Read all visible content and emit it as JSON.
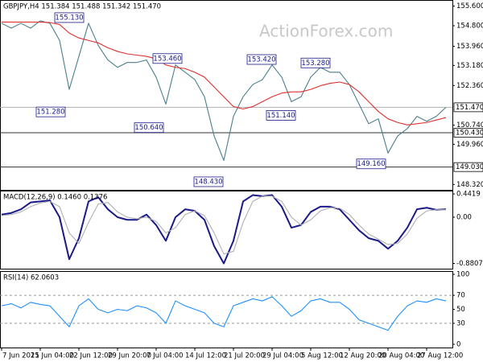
{
  "chart_data": [
    {
      "type": "line",
      "title": "GBPJPY,H4 151.384 151.488 151.342 151.470",
      "watermark": "ActionForex.com",
      "categories": [
        "7 Jun 2021",
        null,
        null,
        null,
        "15 Jun 04:00",
        null,
        null,
        null,
        "22 Jun 12:00",
        null,
        null,
        null,
        "29 Jun 20:00",
        null,
        null,
        null,
        "7 Jul 04:00",
        null,
        null,
        null,
        "14 Jul 12:00",
        null,
        null,
        null,
        "21 Jul 20:00",
        null,
        null,
        null,
        "29 Jul 04:00",
        null,
        null,
        null,
        "5 Aug 12:00",
        null,
        null,
        null,
        "12 Aug 20:00",
        null,
        null,
        null,
        "20 Aug 04:00",
        null,
        null,
        null,
        "27 Aug 12:00",
        null,
        null
      ],
      "series": [
        {
          "color": "#4a7f8c",
          "values": [
            154.9,
            154.7,
            154.9,
            154.7,
            155.0,
            154.9,
            154.2,
            152.2,
            153.55,
            154.9,
            154.0,
            153.4,
            153.1,
            153.3,
            153.3,
            153.4,
            152.7,
            151.6,
            153.2,
            152.9,
            152.6,
            151.9,
            150.3,
            149.3,
            151.1,
            151.9,
            152.4,
            152.6,
            153.2,
            152.7,
            151.7,
            151.9,
            152.7,
            153.1,
            152.9,
            152.9,
            152.4,
            151.6,
            150.8,
            151.0,
            149.6,
            150.3,
            150.6,
            151.1,
            150.9,
            151.1,
            151.47
          ]
        },
        {
          "color": "#e03030",
          "values": [
            154.95,
            154.95,
            154.95,
            154.95,
            154.95,
            154.93,
            154.85,
            154.5,
            154.3,
            154.2,
            154.1,
            153.9,
            153.75,
            153.65,
            153.6,
            153.55,
            153.45,
            153.2,
            153.1,
            153.05,
            152.9,
            152.7,
            152.3,
            151.9,
            151.5,
            151.4,
            151.5,
            151.7,
            151.9,
            152.05,
            152.1,
            152.1,
            152.2,
            152.35,
            152.45,
            152.5,
            152.4,
            152.1,
            151.7,
            151.3,
            151.0,
            150.85,
            150.75,
            150.8,
            150.85,
            150.95,
            151.05
          ]
        }
      ],
      "ylim": [
        148.1,
        155.85
      ],
      "yticks": [
        {
          "value": 155.6,
          "label": "155.600"
        },
        {
          "value": 154.8,
          "label": "154.800"
        },
        {
          "value": 153.96,
          "label": "153.960"
        },
        {
          "value": 153.18,
          "label": "153.180"
        },
        {
          "value": 152.36,
          "label": "152.360"
        },
        {
          "value": 150.74,
          "label": "150.740"
        },
        {
          "value": 149.96,
          "label": "149.960"
        },
        {
          "value": 148.32,
          "label": "148.320"
        }
      ],
      "levels": [
        {
          "value": 151.47,
          "label": "151.470"
        },
        {
          "value": 150.43,
          "label": "150.430"
        },
        {
          "value": 149.03,
          "label": "149.030"
        }
      ],
      "annotations": [
        {
          "value": 155.13,
          "label": "155.130"
        },
        {
          "value": 153.46,
          "label": "153.460"
        },
        {
          "value": 153.42,
          "label": "153.420"
        },
        {
          "value": 153.28,
          "label": "153.280"
        },
        {
          "value": 151.28,
          "label": "151.280"
        },
        {
          "value": 150.64,
          "label": "150.640"
        },
        {
          "value": 151.14,
          "label": "151.140"
        },
        {
          "value": 148.43,
          "label": "148.430"
        },
        {
          "value": 149.16,
          "label": "149.160"
        }
      ]
    },
    {
      "type": "line",
      "title": "MACD(12,26,9) 0.1460 0.1376",
      "series": [
        {
          "color": "#1a1a8a",
          "values": [
            0.05,
            0.08,
            0.15,
            0.28,
            0.3,
            0.32,
            0.0,
            -0.8,
            -0.4,
            0.3,
            0.38,
            0.15,
            0.0,
            -0.05,
            -0.05,
            0.05,
            -0.15,
            -0.45,
            0.0,
            0.15,
            0.12,
            -0.05,
            -0.55,
            -0.88,
            -0.45,
            0.3,
            0.42,
            0.4,
            0.42,
            0.2,
            -0.2,
            -0.15,
            0.1,
            0.2,
            0.2,
            0.15,
            -0.05,
            -0.25,
            -0.4,
            -0.45,
            -0.6,
            -0.45,
            -0.2,
            0.15,
            0.18,
            0.14,
            0.15
          ]
        },
        {
          "color": "#b0b0b0",
          "values": [
            0.03,
            0.05,
            0.1,
            0.2,
            0.27,
            0.3,
            0.2,
            -0.3,
            -0.5,
            -0.1,
            0.25,
            0.28,
            0.1,
            0.0,
            -0.03,
            0.0,
            -0.08,
            -0.3,
            -0.2,
            0.05,
            0.12,
            0.03,
            -0.3,
            -0.7,
            -0.65,
            -0.1,
            0.3,
            0.4,
            0.4,
            0.3,
            0.0,
            -0.15,
            -0.05,
            0.12,
            0.18,
            0.17,
            0.05,
            -0.15,
            -0.32,
            -0.42,
            -0.52,
            -0.5,
            -0.32,
            -0.02,
            0.12,
            0.14,
            0.14
          ]
        }
      ],
      "ylim": [
        -0.98,
        0.52
      ],
      "yticks": [
        0.4419,
        {
          "value": 0,
          "label": "0.00"
        },
        -0.8807
      ]
    },
    {
      "type": "line",
      "title": "RSI(14) 62.0603",
      "series": [
        {
          "color": "#1e90ff",
          "values": [
            55,
            58,
            52,
            60,
            57,
            55,
            40,
            25,
            55,
            65,
            50,
            45,
            50,
            48,
            55,
            52,
            45,
            30,
            62,
            55,
            50,
            45,
            30,
            25,
            55,
            60,
            65,
            62,
            68,
            55,
            40,
            48,
            62,
            65,
            60,
            60,
            50,
            35,
            30,
            25,
            20,
            40,
            55,
            62,
            60,
            65,
            62
          ]
        }
      ],
      "ylim": [
        0,
        100
      ],
      "yticks": [
        100,
        70,
        50,
        30,
        0
      ],
      "levels": [
        70,
        30
      ]
    }
  ]
}
